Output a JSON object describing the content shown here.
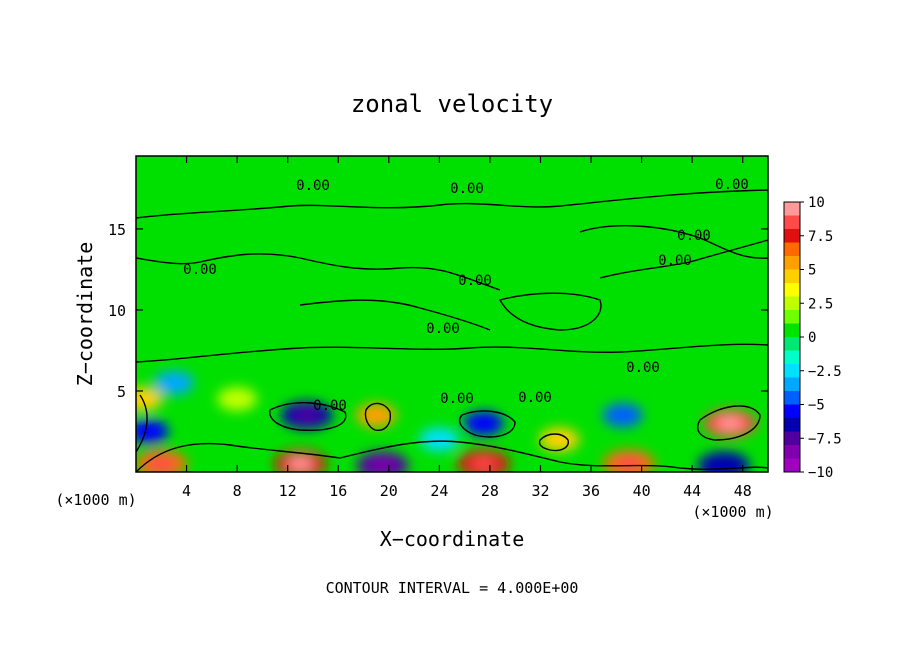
{
  "chart_data": {
    "type": "heatmap",
    "title": "zonal velocity",
    "xlabel": "X−coordinate",
    "ylabel": "Z−coordinate",
    "x_unit": "(×1000 m)",
    "footer": "CONTOUR INTERVAL = 4.000E+00",
    "xlim": [
      0,
      50
    ],
    "ylim": [
      0,
      19.5
    ],
    "x_ticks": [
      4,
      8,
      12,
      16,
      20,
      24,
      28,
      32,
      36,
      40,
      44,
      48
    ],
    "y_ticks": [
      5,
      10,
      15
    ],
    "colorbar": {
      "ticks": [
        "10",
        "7.5",
        "5",
        "2.5",
        "0",
        "−2.5",
        "−5",
        "−7.5",
        "−10"
      ],
      "range": [
        -10,
        10
      ],
      "colors": [
        "#ff9a9a",
        "#ff4a4a",
        "#e01010",
        "#ff6a00",
        "#ffa000",
        "#ffd000",
        "#ffff00",
        "#c0ff00",
        "#70ff00",
        "#00e400",
        "#00e870",
        "#00ffc8",
        "#00e0ff",
        "#00a8ff",
        "#0060ff",
        "#0000ff",
        "#0000b0",
        "#5000a0",
        "#8000b0",
        "#a000c0"
      ]
    },
    "contour_labels": [
      "0.00",
      "0.00",
      "0.00",
      "0.00",
      "0.00",
      "0.00",
      "0.00",
      "0.00",
      "0.00",
      "0.00",
      "0.00",
      "0.00"
    ],
    "features": [
      {
        "x": 2.0,
        "z": 0.5,
        "u": 7.0
      },
      {
        "x": 13.0,
        "z": 0.5,
        "u": 8.0
      },
      {
        "x": 19.5,
        "z": 0.4,
        "u": -7.0
      },
      {
        "x": 27.5,
        "z": 0.5,
        "u": 7.5
      },
      {
        "x": 39.0,
        "z": 0.5,
        "u": 7.0
      },
      {
        "x": 46.5,
        "z": 0.4,
        "u": -6.0
      },
      {
        "x": 13.5,
        "z": 3.5,
        "u": -6.5
      },
      {
        "x": 27.5,
        "z": 3.0,
        "u": -5.5
      },
      {
        "x": 38.5,
        "z": 3.5,
        "u": -4.5
      },
      {
        "x": 47.0,
        "z": 3.0,
        "u": 9.0
      },
      {
        "x": 19.0,
        "z": 3.5,
        "u": 5.5
      },
      {
        "x": 1.0,
        "z": 2.5,
        "u": -5.0
      },
      {
        "x": 3.0,
        "z": 5.5,
        "u": -3.5
      },
      {
        "x": 33.5,
        "z": 2.0,
        "u": 5.0
      },
      {
        "x": 0.5,
        "z": 4.5,
        "u": 5.0
      },
      {
        "x": 8.0,
        "z": 4.5,
        "u": 2.5
      },
      {
        "x": 24.0,
        "z": 2.0,
        "u": -2.0
      }
    ],
    "grid": false,
    "legend": "colorbar-right"
  }
}
